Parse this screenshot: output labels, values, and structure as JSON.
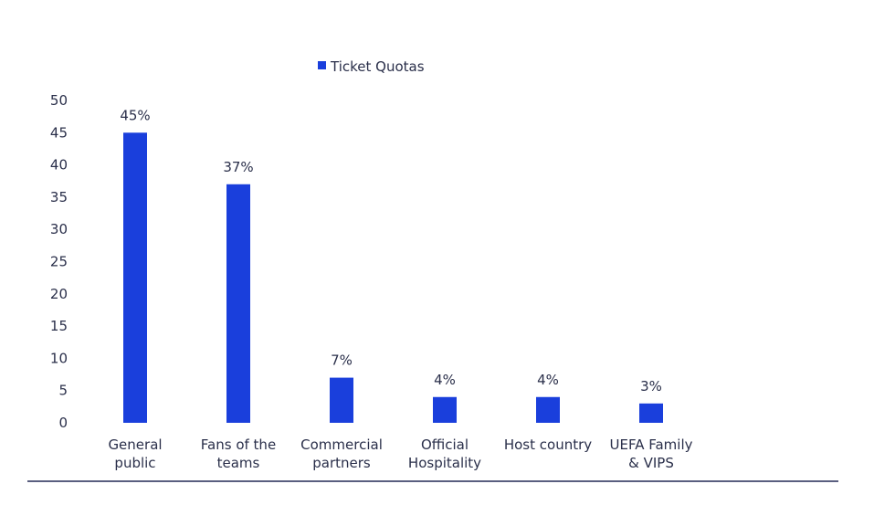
{
  "chart_data": {
    "type": "bar",
    "categories": [
      [
        "General",
        "public"
      ],
      [
        "Fans of the",
        "teams"
      ],
      [
        "Commercial",
        "partners"
      ],
      [
        "Official",
        "Hospitality"
      ],
      [
        "Host country"
      ],
      [
        "UEFA Family",
        "& VIPS"
      ]
    ],
    "series": [
      {
        "name": "Ticket Quotas",
        "values": [
          45,
          37,
          7,
          4,
          4,
          3
        ],
        "labels": [
          "45%",
          "37%",
          "7%",
          "4%",
          "4%",
          "3%"
        ],
        "color": "#1a3fdc"
      }
    ],
    "yticks": [
      "0",
      "5",
      "10",
      "15",
      "20",
      "25",
      "30",
      "35",
      "40",
      "45",
      "50"
    ],
    "ylim": [
      0,
      50
    ],
    "grid": false,
    "legend": "top-center",
    "title": "",
    "xlabel": "",
    "ylabel": ""
  },
  "colors": {
    "bar": "#1a3fdc",
    "text": "#2a2f4a",
    "baseline": "#5a5f80"
  }
}
